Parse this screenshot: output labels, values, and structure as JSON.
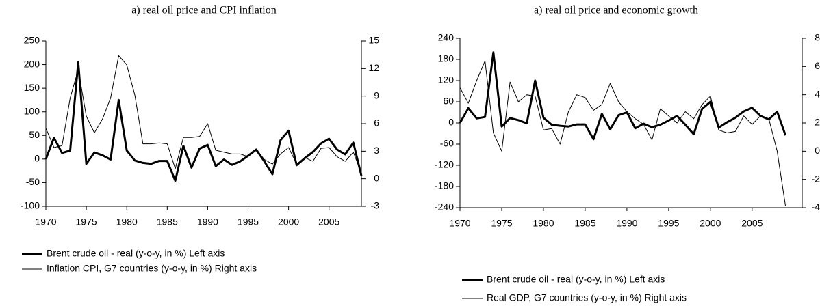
{
  "chart_data": [
    {
      "type": "line",
      "title": "a) real oil price and CPI inflation",
      "x": [
        1970,
        1971,
        1972,
        1973,
        1974,
        1975,
        1976,
        1977,
        1978,
        1979,
        1980,
        1981,
        1982,
        1983,
        1984,
        1985,
        1986,
        1987,
        1988,
        1989,
        1990,
        1991,
        1992,
        1993,
        1994,
        1995,
        1996,
        1997,
        1998,
        1999,
        2000,
        2001,
        2002,
        2003,
        2004,
        2005,
        2006,
        2007,
        2008,
        2009
      ],
      "xlim": [
        1970,
        2009
      ],
      "xticks": [
        1970,
        1975,
        1980,
        1985,
        1990,
        1995,
        2000,
        2005
      ],
      "ylim": [
        -100,
        250
      ],
      "yticks": [
        -100,
        -50,
        0,
        50,
        100,
        150,
        200,
        250
      ],
      "y2lim": [
        -3,
        15
      ],
      "y2ticks": [
        -3,
        0,
        3,
        6,
        9,
        12,
        15
      ],
      "series": [
        {
          "name": "Brent crude oil - real (y-o-y, in %) Left axis",
          "color": "#000000",
          "width": 3,
          "values": [
            0,
            45,
            13,
            18,
            205,
            -10,
            14,
            8,
            -1,
            125,
            18,
            -3,
            -8,
            -10,
            -4,
            -4,
            -46,
            28,
            -18,
            22,
            30,
            -15,
            -1,
            -12,
            -5,
            7,
            20,
            -5,
            -32,
            40,
            60,
            -13,
            2,
            15,
            33,
            43,
            20,
            10,
            35,
            -35
          ]
        },
        {
          "name": "Inflation CPI, G7 countries (y-o-y, in %) Right axis",
          "color": "#000000",
          "width": 1,
          "axis": "y2",
          "values": [
            5.5,
            3.4,
            3.6,
            8.8,
            11.9,
            6.8,
            5.0,
            6.5,
            8.8,
            13.4,
            12.4,
            9.1,
            3.8,
            3.8,
            3.9,
            3.8,
            1.1,
            4.5,
            4.5,
            4.6,
            6.0,
            3.1,
            2.9,
            2.7,
            2.7,
            2.4,
            3.2,
            2.1,
            1.6,
            2.7,
            3.4,
            1.6,
            2.3,
            1.9,
            3.3,
            3.4,
            2.4,
            1.9,
            2.9,
            0.6
          ]
        }
      ]
    },
    {
      "type": "line",
      "title": "a) real oil price and economic growth",
      "x": [
        1970,
        1971,
        1972,
        1973,
        1974,
        1975,
        1976,
        1977,
        1978,
        1979,
        1980,
        1981,
        1982,
        1983,
        1984,
        1985,
        1986,
        1987,
        1988,
        1989,
        1990,
        1991,
        1992,
        1993,
        1994,
        1995,
        1996,
        1997,
        1998,
        1999,
        2000,
        2001,
        2002,
        2003,
        2004,
        2005,
        2006,
        2007,
        2008,
        2009
      ],
      "xlim": [
        1970,
        2011
      ],
      "xticks": [
        1970,
        1975,
        1980,
        1985,
        1990,
        1995,
        2000,
        2005
      ],
      "ylim": [
        -240,
        240
      ],
      "yticks": [
        -240,
        -180,
        -120,
        -60,
        0,
        60,
        120,
        180,
        240
      ],
      "y2lim": [
        -4,
        8
      ],
      "y2ticks": [
        -4,
        -2,
        0,
        2,
        4,
        6,
        8
      ],
      "series": [
        {
          "name": "Brent crude oil - real (y-o-y, in %) Left axis",
          "color": "#000000",
          "width": 3,
          "values": [
            0,
            42,
            13,
            17,
            200,
            -10,
            14,
            8,
            -1,
            120,
            15,
            -5,
            -8,
            -10,
            -4,
            -4,
            -46,
            26,
            -18,
            22,
            30,
            -15,
            -2,
            -12,
            -5,
            7,
            20,
            -5,
            -32,
            40,
            60,
            -13,
            2,
            15,
            33,
            43,
            20,
            10,
            32,
            -35
          ]
        },
        {
          "name": "Real GDP, G7 countries (y-o-y, in %) Right axis",
          "color": "#000000",
          "width": 1,
          "axis": "y2",
          "values": [
            4.5,
            3.4,
            5.0,
            6.4,
            1.3,
            0.0,
            4.9,
            3.5,
            4.0,
            3.9,
            1.5,
            1.6,
            0.5,
            2.8,
            4.0,
            3.8,
            2.9,
            3.3,
            4.8,
            3.5,
            2.8,
            2.3,
            1.9,
            0.8,
            3.0,
            2.5,
            2.0,
            2.8,
            2.3,
            3.3,
            3.9,
            1.5,
            1.3,
            1.4,
            2.5,
            1.9,
            2.5,
            2.3,
            0.0,
            -3.9
          ]
        }
      ]
    }
  ]
}
